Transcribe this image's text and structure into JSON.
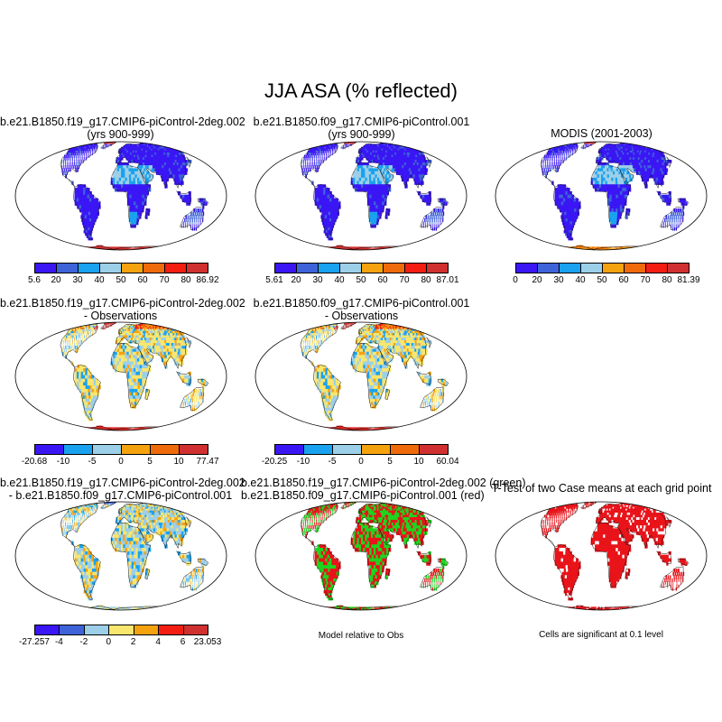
{
  "page": {
    "title": "JJA ASA (% reflected)"
  },
  "panels": [
    {
      "id": "p1",
      "title": [
        "b.e21.B1850.f19_g17.CMIP6-piControl-2deg.002",
        "(yrs 900-999)"
      ],
      "kind": "albedo",
      "colorbar": [
        "5.6",
        "20",
        "30",
        "40",
        "50",
        "60",
        "70",
        "80",
        "86.92"
      ]
    },
    {
      "id": "p2",
      "title": [
        "b.e21.B1850.f09_g17.CMIP6-piControl.001",
        "(yrs 900-999)"
      ],
      "kind": "albedo",
      "colorbar": [
        "5.61",
        "20",
        "30",
        "40",
        "50",
        "60",
        "70",
        "80",
        "87.01"
      ]
    },
    {
      "id": "p3",
      "title": [
        "MODIS (2001-2003)"
      ],
      "kind": "albedo-obs",
      "colorbar": [
        "0",
        "20",
        "30",
        "40",
        "50",
        "60",
        "70",
        "80",
        "81.39"
      ]
    },
    {
      "id": "p4",
      "title": [
        "b.e21.B1850.f19_g17.CMIP6-piControl-2deg.002",
        "- Observations"
      ],
      "kind": "diff",
      "colorbar": [
        "-20.68",
        "-10",
        "-5",
        "0",
        "5",
        "10",
        "77.47"
      ]
    },
    {
      "id": "p5",
      "title": [
        "b.e21.B1850.f09_g17.CMIP6-piControl.001",
        "- Observations"
      ],
      "kind": "diff",
      "colorbar": [
        "-20.25",
        "-10",
        "-5",
        "0",
        "5",
        "10",
        "60.04"
      ]
    },
    {
      "id": "p6",
      "title": [
        "b.e21.B1850.f19_g17.CMIP6-piControl-2deg.002",
        "- b.e21.B1850.f09_g17.CMIP6-piControl.001"
      ],
      "kind": "casediff",
      "colorbar": [
        "-27.257",
        "-4",
        "-2",
        "0",
        "2",
        "4",
        "6",
        "23.053"
      ]
    },
    {
      "id": "p7",
      "title": [
        "b.e21.B1850.f19_g17.CMIP6-piControl-2deg.002 (green)",
        "b.e21.B1850.f09_g17.CMIP6-piControl.001 (red)"
      ],
      "kind": "redgreen",
      "note": "Model relative to Obs"
    },
    {
      "id": "p8",
      "title": [
        "T-Test of two Case means at each grid point"
      ],
      "kind": "ttest",
      "note": "Cells are significant at 0.1 level"
    }
  ],
  "colors": {
    "albedo": [
      "#3b16f5",
      "#3e63d8",
      "#19a2ef",
      "#9ccfe8",
      "#f8e66e",
      "#f5a20f",
      "#ef6a0a",
      "#f31d12",
      "#d03030"
    ],
    "diff": [
      "#3b16f5",
      "#3e63d8",
      "#19a2ef",
      "#9ccfe8",
      "#f8e66e",
      "#f5a20f",
      "#ef6a0a",
      "#f31d12",
      "#d03030"
    ],
    "green": "#1fd41f",
    "red": "#e8141a",
    "ocean": "#ffffff"
  }
}
